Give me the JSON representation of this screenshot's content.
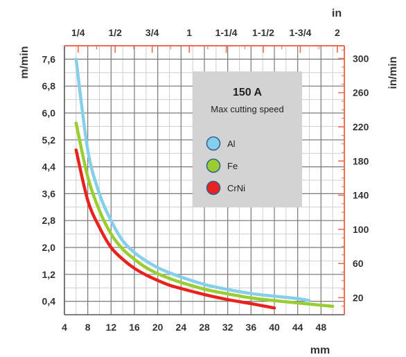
{
  "chart_data": {
    "type": "line",
    "title": "150 A",
    "subtitle": "Max cutting speed",
    "xlabel": "mm",
    "xlim": [
      4,
      52
    ],
    "x_ticks": [
      4,
      8,
      12,
      16,
      20,
      24,
      28,
      32,
      36,
      40,
      44,
      48
    ],
    "top_axis": {
      "label": "in",
      "ticks": [
        {
          "label": "1/4",
          "mm": 6.35
        },
        {
          "label": "1/2",
          "mm": 12.7
        },
        {
          "label": "3/4",
          "mm": 19.05
        },
        {
          "label": "1",
          "mm": 25.4
        },
        {
          "label": "1-1/4",
          "mm": 31.75
        },
        {
          "label": "1-1/2",
          "mm": 38.1
        },
        {
          "label": "1-3/4",
          "mm": 44.45
        },
        {
          "label": "2",
          "mm": 50.8
        }
      ]
    },
    "ylabel": "m/min",
    "ylim": [
      0,
      8
    ],
    "y_ticks": [
      "0,4",
      "1,2",
      "2,0",
      "2,8",
      "3,6",
      "4,4",
      "5,2",
      "6,0",
      "6,8",
      "7,6"
    ],
    "y2label": "in/min",
    "y2_ticks": [
      "20",
      "60",
      "100",
      "140",
      "180",
      "220",
      "260",
      "300"
    ],
    "grid": true,
    "legend_position": "top-right",
    "series": [
      {
        "name": "Al",
        "color": "#87ceeb",
        "x": [
          6,
          8,
          10,
          12,
          14,
          16,
          18,
          20,
          22,
          24,
          28,
          32,
          36,
          40,
          44,
          46
        ],
        "y": [
          7.6,
          4.9,
          3.6,
          2.8,
          2.2,
          1.85,
          1.6,
          1.4,
          1.25,
          1.12,
          0.9,
          0.75,
          0.63,
          0.55,
          0.48,
          0.42
        ]
      },
      {
        "name": "Fe",
        "color": "#9acd32",
        "x": [
          6,
          8,
          10,
          12,
          14,
          16,
          18,
          20,
          22,
          24,
          28,
          32,
          36,
          40,
          44,
          50
        ],
        "y": [
          5.7,
          4.1,
          3.1,
          2.4,
          1.95,
          1.65,
          1.4,
          1.22,
          1.08,
          0.96,
          0.76,
          0.62,
          0.5,
          0.42,
          0.35,
          0.25
        ]
      },
      {
        "name": "CrNi",
        "color": "#e8231f",
        "x": [
          6,
          8,
          10,
          12,
          14,
          16,
          18,
          20,
          22,
          24,
          28,
          32,
          36,
          40
        ],
        "y": [
          4.9,
          3.4,
          2.6,
          2.0,
          1.65,
          1.38,
          1.18,
          1.02,
          0.88,
          0.78,
          0.6,
          0.45,
          0.33,
          0.2
        ]
      }
    ]
  }
}
